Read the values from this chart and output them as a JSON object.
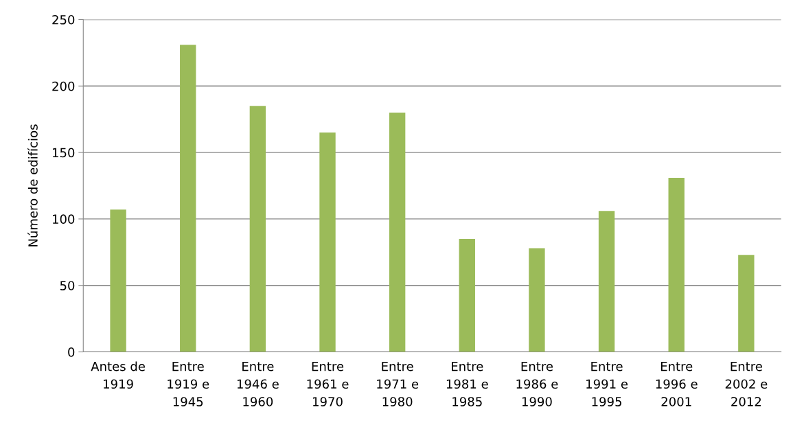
{
  "chart_data": {
    "type": "bar",
    "ylabel": "Número de edifícios",
    "categories": [
      "Antes de 1919",
      "Entre 1919 e 1945",
      "Entre 1946 e 1960",
      "Entre 1961 e 1970",
      "Entre 1971 e 1980",
      "Entre 1981 e 1985",
      "Entre 1986 e 1990",
      "Entre 1991 e 1995",
      "Entre 1996 e 2001",
      "Entre 2002 e 2012"
    ],
    "values": [
      107,
      231,
      185,
      165,
      180,
      85,
      78,
      106,
      131,
      73
    ],
    "color": "#9bbb59",
    "ylim": [
      0,
      250
    ],
    "yticks": [
      0,
      50,
      100,
      150,
      200,
      250
    ],
    "grid": "y"
  }
}
